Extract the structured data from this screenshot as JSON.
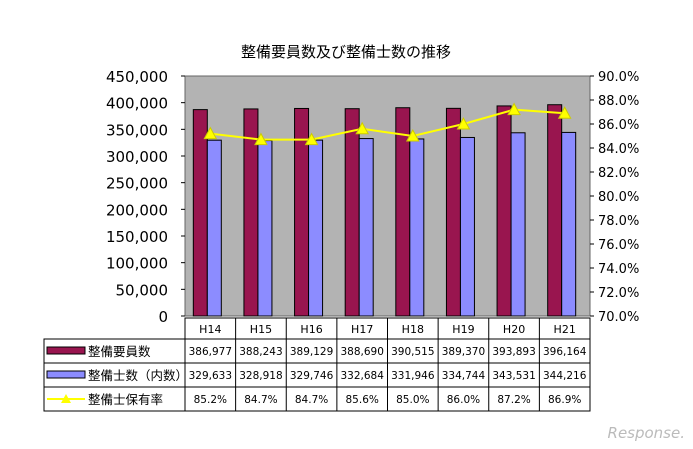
{
  "chart_data": {
    "type": "bar",
    "title": "整備要員数及び整備士数の推移",
    "categories": [
      "H14",
      "H15",
      "H16",
      "H17",
      "H18",
      "H19",
      "H20",
      "H21"
    ],
    "series": [
      {
        "name": "整備要員数",
        "kind": "bar",
        "axis": "left",
        "color": "#99154f",
        "values": [
          386977,
          388243,
          389129,
          388690,
          390515,
          389370,
          393893,
          396164
        ],
        "labels": [
          "386,977",
          "388,243",
          "389,129",
          "388,690",
          "390,515",
          "389,370",
          "393,893",
          "396,164"
        ]
      },
      {
        "name": "整備士数（内数）",
        "kind": "bar",
        "axis": "left",
        "color": "#8c8cff",
        "values": [
          329633,
          328918,
          329746,
          332684,
          331946,
          334744,
          343531,
          344216
        ],
        "labels": [
          "329,633",
          "328,918",
          "329,746",
          "332,684",
          "331,946",
          "334,744",
          "343,531",
          "344,216"
        ]
      },
      {
        "name": "整備士保有率",
        "kind": "line",
        "axis": "right",
        "color": "#ffff00",
        "values": [
          85.2,
          84.7,
          84.7,
          85.6,
          85.0,
          86.0,
          87.2,
          86.9
        ],
        "labels": [
          "85.2%",
          "84.7%",
          "84.7%",
          "85.6%",
          "85.0%",
          "86.0%",
          "87.2%",
          "86.9%"
        ]
      }
    ],
    "ylim": [
      0,
      450000
    ],
    "yticks": [
      "0",
      "50,000",
      "100,000",
      "150,000",
      "200,000",
      "250,000",
      "300,000",
      "350,000",
      "400,000",
      "450,000"
    ],
    "y2lim": [
      70,
      90
    ],
    "y2ticks": [
      "70.0%",
      "72.0%",
      "74.0%",
      "76.0%",
      "78.0%",
      "80.0%",
      "82.0%",
      "84.0%",
      "86.0%",
      "88.0%",
      "90.0%"
    ],
    "legend": "data-table-bottom",
    "plot_bg": "#b3b3b3"
  },
  "watermark": "Response."
}
